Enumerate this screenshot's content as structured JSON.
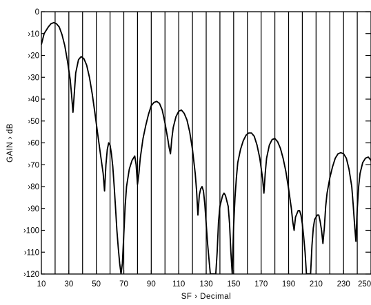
{
  "chart_data": {
    "type": "line",
    "xlabel": "SF › Decimal",
    "ylabel": "GAIN › dB",
    "xlim": [
      10,
      250
    ],
    "ylim": [
      -120,
      0
    ],
    "grid": "vertical lines every 10 SF; right-axis tick marks every 10 dB",
    "x_ticks": [
      10,
      30,
      50,
      70,
      90,
      110,
      130,
      150,
      170,
      190,
      210,
      230,
      250
    ],
    "x_tick_labels": [
      "10",
      "30",
      "50",
      "70",
      "90",
      "110",
      "130",
      "150",
      "170",
      "190",
      "210",
      "230",
      "250"
    ],
    "y_ticks": [
      0,
      -10,
      -20,
      -30,
      -40,
      -50,
      -60,
      -70,
      -80,
      -90,
      -100,
      -110,
      -120
    ],
    "y_tick_labels": [
      "0",
      "›10",
      "›20",
      "›30",
      "›40",
      "›50",
      "›60",
      "›70",
      "›80",
      "›90",
      "›100",
      "›110",
      "›120"
    ],
    "series": [
      {
        "color": "#000000",
        "points": [
          [
            10,
            -15
          ],
          [
            12,
            -10
          ],
          [
            15,
            -7
          ],
          [
            17,
            -5.5
          ],
          [
            19,
            -5
          ],
          [
            21,
            -5.5
          ],
          [
            23,
            -7
          ],
          [
            25,
            -10.5
          ],
          [
            27,
            -15.5
          ],
          [
            29,
            -22.5
          ],
          [
            31,
            -31
          ],
          [
            32,
            -38
          ],
          [
            33,
            -46
          ],
          [
            33.8,
            -39
          ],
          [
            35,
            -28
          ],
          [
            37,
            -22
          ],
          [
            39,
            -20.5
          ],
          [
            41,
            -21.5
          ],
          [
            43,
            -24.5
          ],
          [
            45,
            -30
          ],
          [
            47,
            -37.5
          ],
          [
            49,
            -46.5
          ],
          [
            51,
            -56
          ],
          [
            53,
            -65
          ],
          [
            55,
            -74
          ],
          [
            56,
            -82
          ],
          [
            57,
            -70
          ],
          [
            58,
            -63
          ],
          [
            59,
            -60
          ],
          [
            60,
            -61
          ],
          [
            61,
            -65
          ],
          [
            62,
            -71
          ],
          [
            63,
            -80
          ],
          [
            64,
            -90
          ],
          [
            65,
            -100
          ],
          [
            66,
            -108
          ],
          [
            67,
            -115
          ],
          [
            68,
            -120
          ],
          [
            69,
            -115
          ],
          [
            70,
            -102
          ],
          [
            71,
            -89
          ],
          [
            72,
            -80
          ],
          [
            74,
            -72
          ],
          [
            76,
            -68
          ],
          [
            78,
            -66
          ],
          [
            79,
            -70
          ],
          [
            80,
            -79
          ],
          [
            81,
            -74
          ],
          [
            82,
            -67
          ],
          [
            84,
            -58
          ],
          [
            86,
            -52
          ],
          [
            88,
            -47
          ],
          [
            90,
            -43
          ],
          [
            92,
            -41.5
          ],
          [
            94,
            -41
          ],
          [
            96,
            -42
          ],
          [
            98,
            -45
          ],
          [
            100,
            -51
          ],
          [
            102,
            -58
          ],
          [
            103,
            -62
          ],
          [
            104,
            -65
          ],
          [
            105,
            -58
          ],
          [
            106,
            -53
          ],
          [
            108,
            -48
          ],
          [
            110,
            -45.5
          ],
          [
            112,
            -45
          ],
          [
            114,
            -46.5
          ],
          [
            116,
            -49.5
          ],
          [
            118,
            -55
          ],
          [
            120,
            -63
          ],
          [
            122,
            -74
          ],
          [
            123,
            -82
          ],
          [
            124,
            -93
          ],
          [
            125,
            -84
          ],
          [
            126,
            -81
          ],
          [
            127,
            -80
          ],
          [
            128,
            -82
          ],
          [
            129,
            -88
          ],
          [
            130,
            -97
          ],
          [
            131,
            -106
          ],
          [
            132,
            -113
          ],
          [
            133,
            -120
          ],
          [
            137,
            -120
          ],
          [
            138,
            -110
          ],
          [
            139,
            -96
          ],
          [
            140,
            -89
          ],
          [
            142,
            -84
          ],
          [
            143,
            -83
          ],
          [
            144,
            -84
          ],
          [
            146,
            -89
          ],
          [
            147,
            -97
          ],
          [
            148,
            -110
          ],
          [
            149,
            -120
          ],
          [
            150,
            -98
          ],
          [
            151,
            -85
          ],
          [
            152,
            -76
          ],
          [
            153,
            -69
          ],
          [
            155,
            -63
          ],
          [
            157,
            -59
          ],
          [
            159,
            -56.5
          ],
          [
            161,
            -55.5
          ],
          [
            163,
            -55.5
          ],
          [
            165,
            -57
          ],
          [
            167,
            -61
          ],
          [
            169,
            -67
          ],
          [
            171,
            -76
          ],
          [
            172,
            -83
          ],
          [
            173,
            -74
          ],
          [
            174,
            -67
          ],
          [
            176,
            -61
          ],
          [
            178,
            -58.5
          ],
          [
            180,
            -58
          ],
          [
            182,
            -59.5
          ],
          [
            184,
            -62.5
          ],
          [
            186,
            -67
          ],
          [
            188,
            -73
          ],
          [
            190,
            -81
          ],
          [
            192,
            -90
          ],
          [
            193,
            -96
          ],
          [
            194,
            -100
          ],
          [
            195,
            -94
          ],
          [
            197,
            -91
          ],
          [
            198,
            -91
          ],
          [
            199,
            -93
          ],
          [
            200,
            -97
          ],
          [
            201,
            -103
          ],
          [
            202,
            -110
          ],
          [
            203,
            -120
          ],
          [
            206,
            -120
          ],
          [
            207,
            -107
          ],
          [
            208,
            -99
          ],
          [
            209,
            -95
          ],
          [
            211,
            -93
          ],
          [
            212,
            -93
          ],
          [
            213,
            -96
          ],
          [
            214,
            -100
          ],
          [
            215,
            -106
          ],
          [
            216,
            -99
          ],
          [
            217,
            -89
          ],
          [
            218,
            -83
          ],
          [
            220,
            -76
          ],
          [
            222,
            -71
          ],
          [
            224,
            -67
          ],
          [
            226,
            -65
          ],
          [
            228,
            -64.5
          ],
          [
            230,
            -65
          ],
          [
            232,
            -67
          ],
          [
            234,
            -72
          ],
          [
            236,
            -80
          ],
          [
            237,
            -88
          ],
          [
            238,
            -97
          ],
          [
            239,
            -105
          ],
          [
            240,
            -90
          ],
          [
            241,
            -80
          ],
          [
            242,
            -74
          ],
          [
            244,
            -69
          ],
          [
            246,
            -67
          ],
          [
            248,
            -66.5
          ],
          [
            250,
            -68
          ],
          [
            251,
            -71
          ]
        ]
      }
    ]
  }
}
